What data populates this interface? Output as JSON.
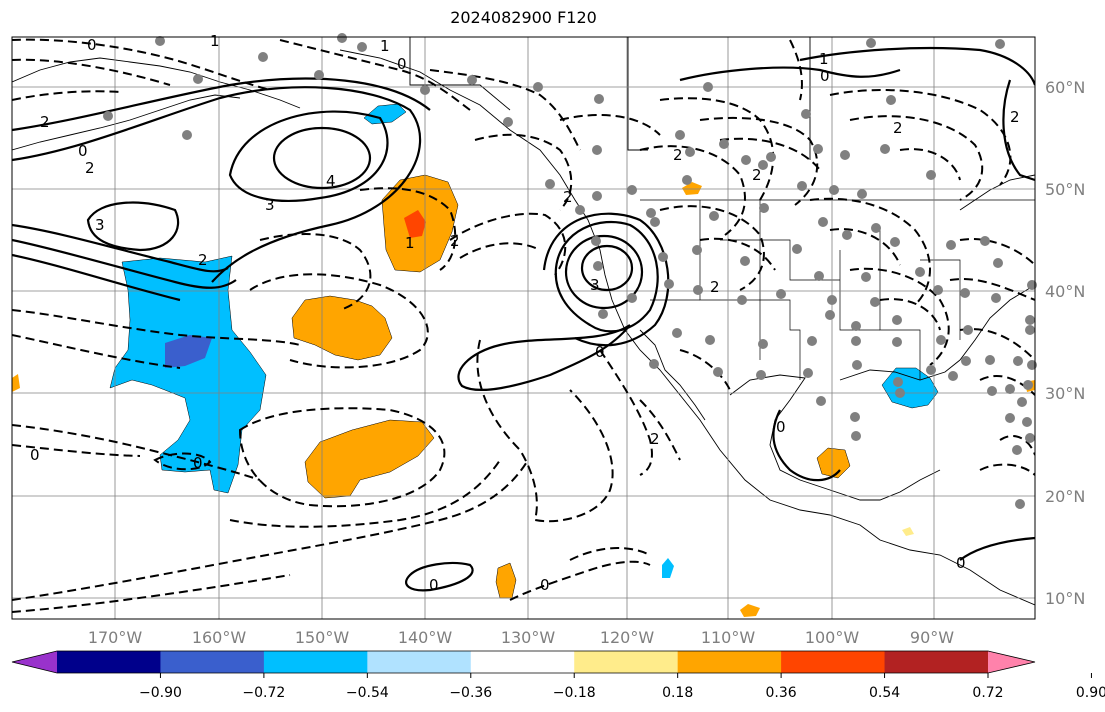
{
  "title": "2024082900 F120",
  "lon_labels": [
    "170°W",
    "160°W",
    "150°W",
    "140°W",
    "130°W",
    "120°W",
    "110°W",
    "100°W",
    "90°W"
  ],
  "lat_labels": [
    "60°N",
    "50°N",
    "40°N",
    "30°N",
    "20°N",
    "10°N"
  ],
  "colorbar": {
    "ticks": [
      "−0.90",
      "−0.72",
      "−0.54",
      "−0.36",
      "−0.18",
      "0.18",
      "0.36",
      "0.54",
      "0.72",
      "0.90"
    ],
    "colors": [
      "#9932cc",
      "#00008b",
      "#3a5fcd",
      "#00bfff",
      "#b0e2ff",
      "#ffffff",
      "#ffec8b",
      "#ffa500",
      "#ff4500",
      "#b22222",
      "#ff82ab"
    ]
  },
  "contour_labels": [
    "0",
    "1",
    "0",
    "1",
    "0",
    "2",
    "0",
    "2",
    "2",
    "3",
    "4",
    "3",
    "2",
    "1",
    "0",
    "2",
    "1",
    "2",
    "3",
    "2",
    "0",
    "2",
    "0",
    "0",
    "0",
    "0",
    "0",
    "2",
    "2",
    "2"
  ]
}
